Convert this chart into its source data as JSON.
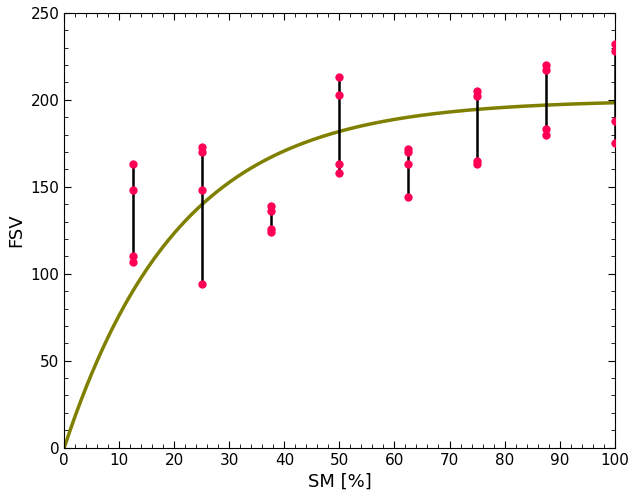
{
  "title": "",
  "xlabel": "SM [%]",
  "ylabel": "FSV",
  "xlim": [
    0,
    100
  ],
  "ylim": [
    0,
    250
  ],
  "xticks": [
    0,
    10,
    20,
    30,
    40,
    50,
    60,
    70,
    80,
    90,
    100
  ],
  "yticks": [
    0,
    50,
    100,
    150,
    200,
    250
  ],
  "curve_color": "#808000",
  "curve_lw": 2.5,
  "curve_a": 200.0,
  "curve_b": 0.048,
  "scatter_color": "#FF0055",
  "scatter_ms": 6,
  "errorbar_color": "#000000",
  "errorbar_lw": 1.8,
  "data_points": [
    {
      "x": 12.5,
      "points": [
        107,
        110,
        148,
        163
      ]
    },
    {
      "x": 25,
      "points": [
        94,
        148,
        170,
        173
      ]
    },
    {
      "x": 37.5,
      "points": [
        124,
        126,
        136,
        139
      ]
    },
    {
      "x": 50,
      "points": [
        158,
        163,
        203,
        213
      ]
    },
    {
      "x": 62.5,
      "points": [
        144,
        163,
        170,
        172
      ]
    },
    {
      "x": 75,
      "points": [
        163,
        165,
        202,
        205
      ]
    },
    {
      "x": 87.5,
      "points": [
        180,
        183,
        217,
        220
      ]
    },
    {
      "x": 100,
      "points": [
        175,
        188,
        228,
        232
      ]
    }
  ]
}
